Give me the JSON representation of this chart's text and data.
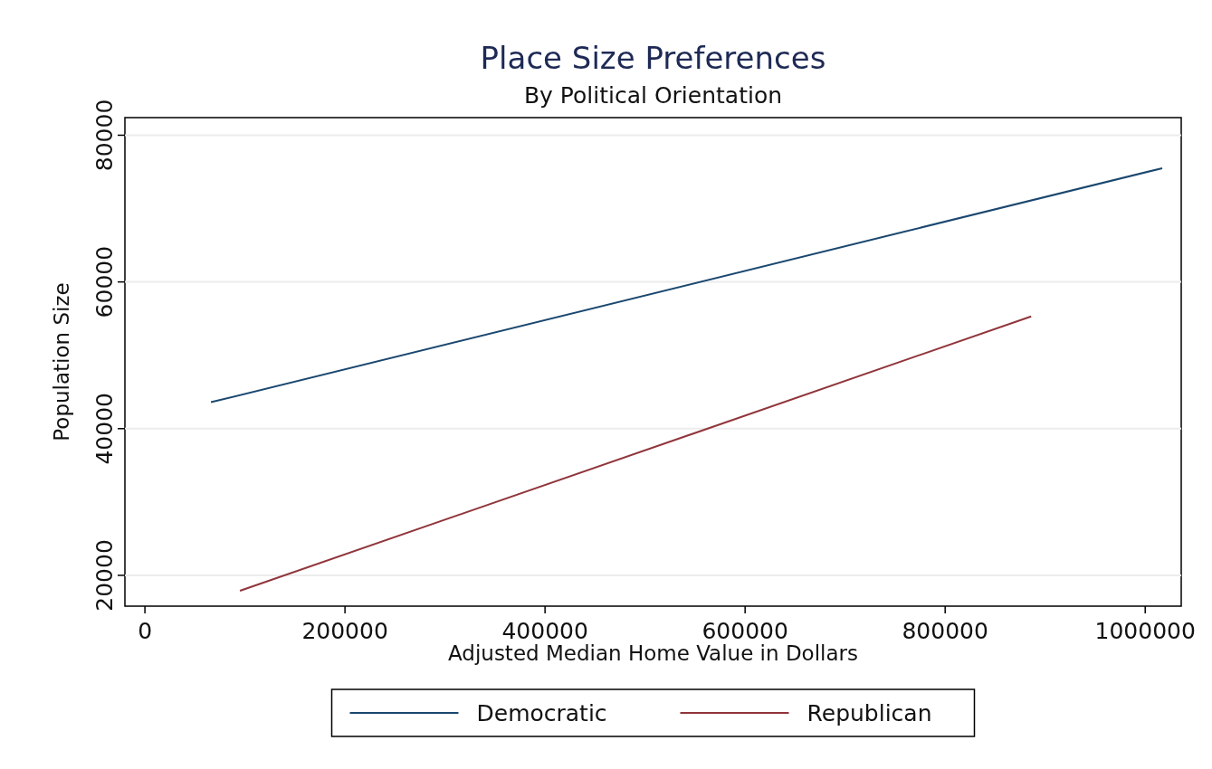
{
  "chart_data": {
    "type": "line",
    "title": "Place Size Preferences",
    "subtitle": "By Political Orientation",
    "xlabel": "Adjusted Median Home Value in Dollars",
    "ylabel": "Population Size",
    "series": [
      {
        "name": "Democratic",
        "color": "#1a476f",
        "x": [
          66000,
          1017000
        ],
        "values": [
          43600,
          75500
        ]
      },
      {
        "name": "Republican",
        "color": "#90353b",
        "x": [
          95000,
          886000
        ],
        "values": [
          17900,
          55300
        ]
      }
    ],
    "xlim": [
      -20000,
      1036000
    ],
    "xticks": [
      0,
      200000,
      400000,
      600000,
      800000,
      1000000
    ],
    "ylim": [
      15800,
      82400
    ],
    "yticks": [
      20000,
      40000,
      60000,
      80000
    ],
    "grid": "y",
    "legend": "bottom",
    "marker": "none",
    "line_style": "solid"
  }
}
